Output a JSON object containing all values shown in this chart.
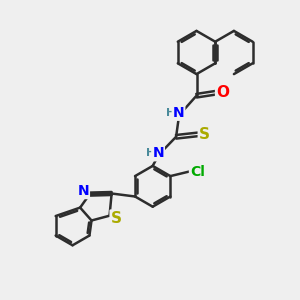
{
  "background_color": "#efefef",
  "bond_color": "#2d2d2d",
  "bond_width": 1.8,
  "atom_colors": {
    "N": "#0000ff",
    "O": "#ff0000",
    "S": "#aaaa00",
    "Cl": "#00aa00",
    "H": "#4a8a9a"
  },
  "figsize": [
    3.0,
    3.0
  ],
  "dpi": 100
}
